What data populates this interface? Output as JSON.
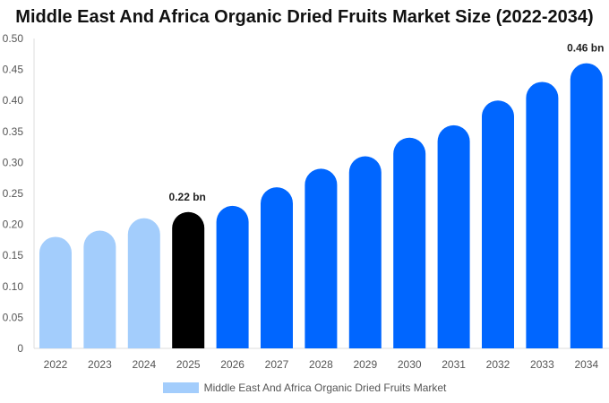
{
  "chart_data": {
    "type": "bar",
    "title": "Middle East And Africa Organic Dried Fruits Market Size (2022-2034)",
    "categories": [
      "2022",
      "2023",
      "2024",
      "2025",
      "2026",
      "2027",
      "2028",
      "2029",
      "2030",
      "2031",
      "2032",
      "2033",
      "2034"
    ],
    "series": [
      {
        "name": "Middle East And Africa Organic Dried Fruits Market",
        "values": [
          0.18,
          0.19,
          0.21,
          0.22,
          0.23,
          0.26,
          0.29,
          0.31,
          0.34,
          0.36,
          0.4,
          0.43,
          0.46
        ]
      }
    ],
    "ylim": [
      0,
      0.5
    ],
    "yticks": [
      "0",
      "0.05",
      "0.10",
      "0.15",
      "0.20",
      "0.25",
      "0.30",
      "0.35",
      "0.40",
      "0.45",
      "0.50"
    ],
    "data_labels": [
      {
        "category": "2025",
        "text": "0.22 bn"
      },
      {
        "category": "2034",
        "text": "0.46 bn"
      }
    ],
    "colors": {
      "historical": "#a3cdfc",
      "current": "#000000",
      "forecast": "#0066ff"
    },
    "grid": false,
    "legend": "bottom"
  }
}
